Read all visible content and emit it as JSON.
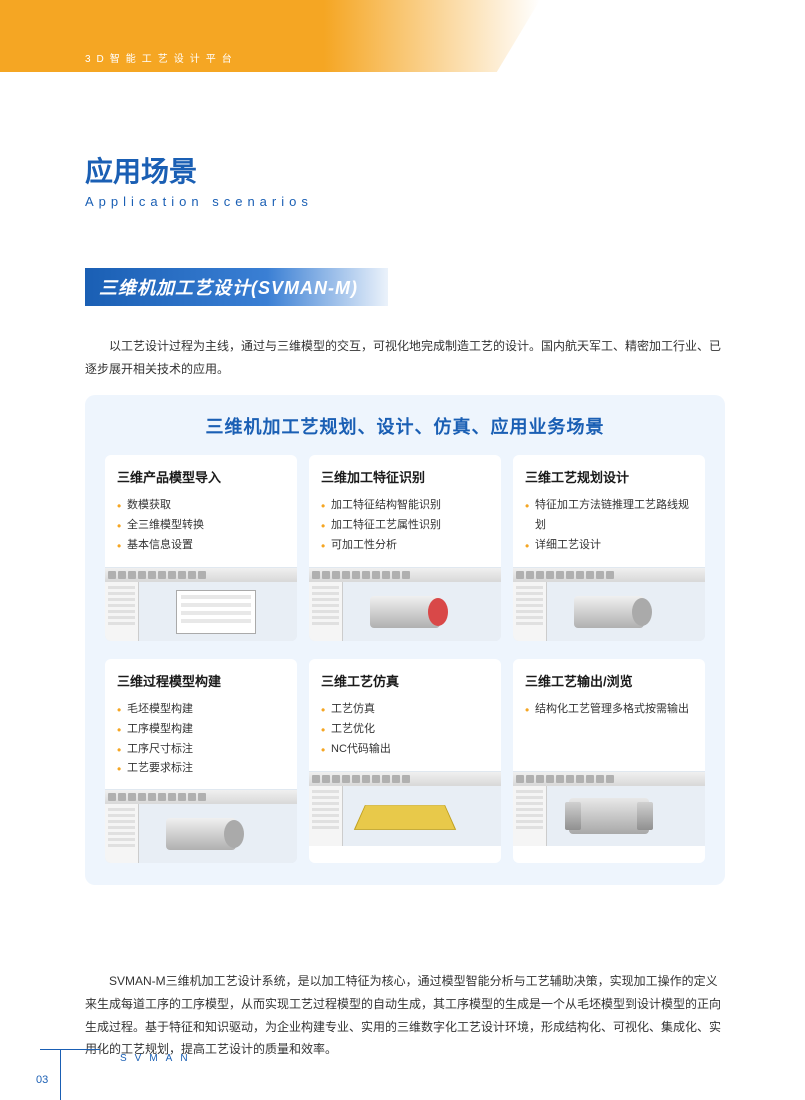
{
  "header": {
    "banner_text": "3D智能工艺设计平台"
  },
  "section": {
    "title_cn": "应用场景",
    "title_en": "Application scenarios",
    "sub_heading": "三维机加工艺设计(SVMAN-M)",
    "intro": "以工艺设计过程为主线，通过与三维模型的交互，可视化地完成制造工艺的设计。国内航天军工、精密加工行业、已逐步展开相关技术的应用。"
  },
  "scenarios": {
    "title": "三维机加工艺规划、设计、仿真、应用业务场景",
    "cards": [
      {
        "title": "三维产品模型导入",
        "items": [
          "数模获取",
          "全三维模型转换",
          "基本信息设置"
        ],
        "shape": "dialog"
      },
      {
        "title": "三维加工特征识别",
        "items": [
          "加工特征结构智能识别",
          "加工特征工艺属性识别",
          "可加工性分析"
        ],
        "shape": "cylinder-red"
      },
      {
        "title": "三维工艺规划设计",
        "items": [
          "特征加工方法链推理工艺路线规划",
          "详细工艺设计"
        ],
        "shape": "cylinder-gray"
      },
      {
        "title": "三维过程模型构建",
        "items": [
          "毛坯模型构建",
          "工序模型构建",
          "工序尺寸标注",
          "工艺要求标注"
        ],
        "shape": "cylinder-gray"
      },
      {
        "title": "三维工艺仿真",
        "items": [
          "工艺仿真",
          "工艺优化",
          "NC代码输出"
        ],
        "shape": "block"
      },
      {
        "title": "三维工艺输出/浏览",
        "items": [
          "结构化工艺管理多格式按需输出"
        ],
        "shape": "gear"
      }
    ]
  },
  "summary": "SVMAN-M三维机加工艺设计系统，是以加工特征为核心，通过模型智能分析与工艺辅助决策，实现加工操作的定义来生成每道工序的工序模型，从而实现工艺过程模型的自动生成，其工序模型的生成是一个从毛坯模型到设计模型的正向生成过程。基于特征和知识驱动，为企业构建专业、实用的三维数字化工艺设计环境，形成结构化、可视化、集成化、实用化的工艺规划，提高工艺设计的质量和效率。",
  "footer": {
    "brand": "SVMAN",
    "page": "03"
  },
  "colors": {
    "primary": "#1a5fb4",
    "accent": "#f5a623",
    "panel_bg": "#eef5fd",
    "text": "#333333"
  }
}
